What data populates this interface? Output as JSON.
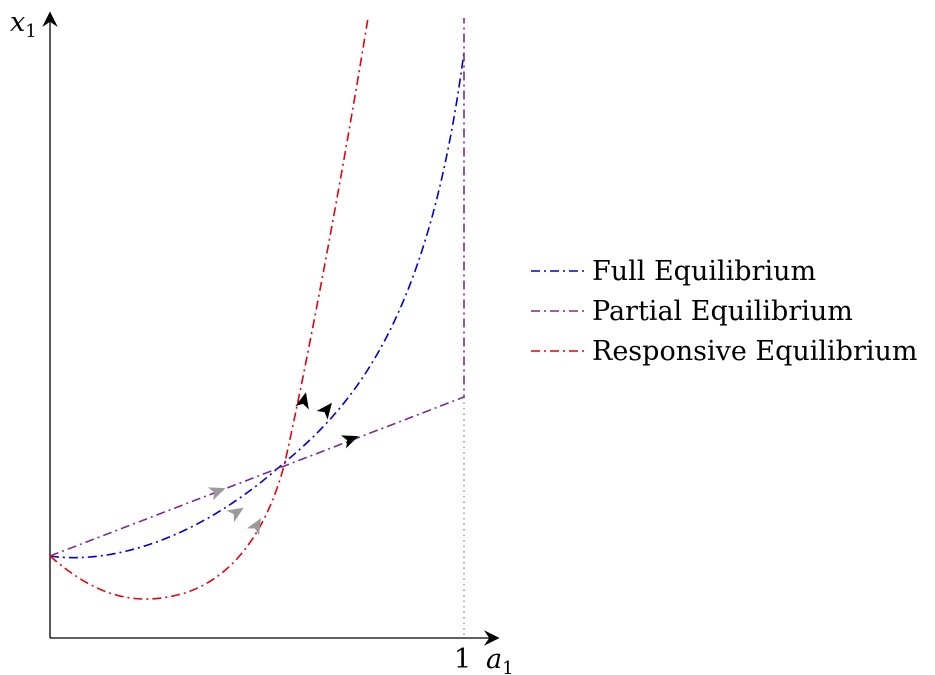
{
  "axes": {
    "y_label": "x",
    "y_label_sub": "1",
    "x_label": "a",
    "x_label_sub": "1",
    "x_tick": "1"
  },
  "legend": {
    "items": [
      {
        "label": "Full Equilibrium",
        "color": "#0000d4"
      },
      {
        "label": "Partial Equilibrium",
        "color": "#7a2a96"
      },
      {
        "label": "Responsive Equilibrium",
        "color": "#e8000b"
      }
    ]
  },
  "colors": {
    "full": "#0000d4",
    "partial": "#7a2a96",
    "responsive": "#e8000b",
    "arrow_early": "#9a9a9a",
    "arrow_late": "#000000"
  }
}
